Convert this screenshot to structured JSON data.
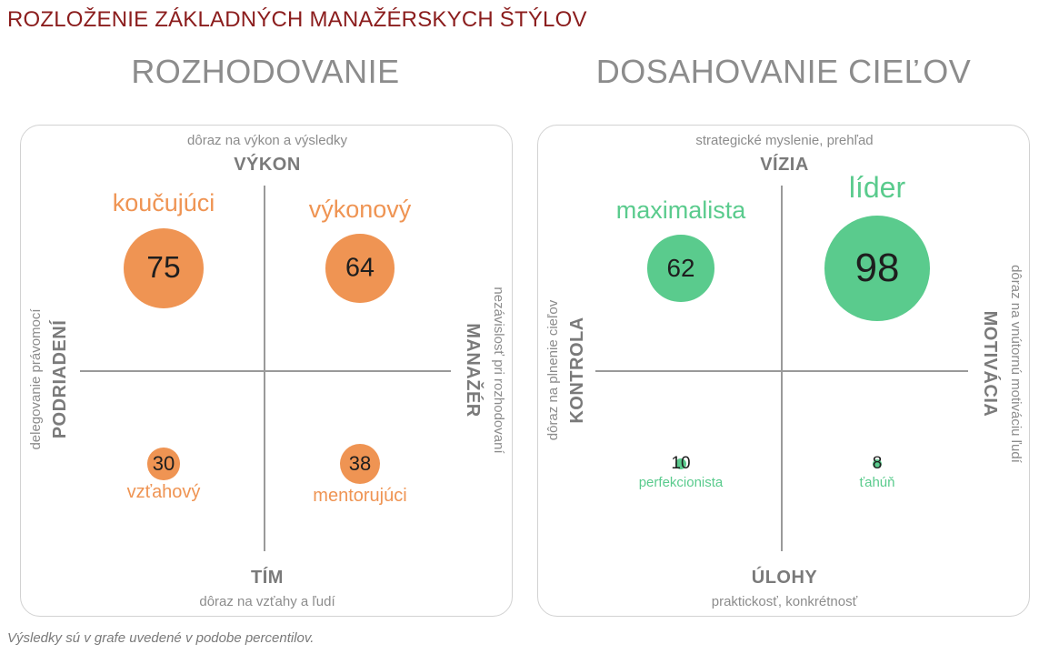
{
  "page_title": "ROZLOŽENIE ZÁKLADNÝCH MANAŽÉRSKYCH ŠTÝLOV",
  "footnote": "Výsledky sú v grafe uvedené v podobe percentilov.",
  "colors": {
    "orange": "#ef9453",
    "green": "#5acb8d",
    "title": "#8b1d1d"
  },
  "chart_data": [
    {
      "type": "scatter",
      "title": "ROZHODOVANIE",
      "axes": {
        "top": {
          "label": "VÝKON",
          "desc": "dôraz na výkon a výsledky"
        },
        "bottom": {
          "label": "TÍM",
          "desc": "dôraz na vzťahy a ľudí"
        },
        "left": {
          "label": "PODRIADENÍ",
          "desc": "delegovanie právomocí"
        },
        "right": {
          "label": "MANAŽÉR",
          "desc": "nezávislosť pri rozhodovaní"
        }
      },
      "color": "#ef9453",
      "points": [
        {
          "quadrant": "top-left",
          "name": "koučujúci",
          "value": 75
        },
        {
          "quadrant": "top-right",
          "name": "výkonový",
          "value": 64
        },
        {
          "quadrant": "bottom-left",
          "name": "vzťahový",
          "value": 30
        },
        {
          "quadrant": "bottom-right",
          "name": "mentorujúci",
          "value": 38
        }
      ]
    },
    {
      "type": "scatter",
      "title": "DOSAHOVANIE CIEĽOV",
      "axes": {
        "top": {
          "label": "VÍZIA",
          "desc": "strategické myslenie, prehľad"
        },
        "bottom": {
          "label": "ÚLOHY",
          "desc": "praktickosť, konkrétnosť"
        },
        "left": {
          "label": "KONTROLA",
          "desc": "dôraz na plnenie cieľov"
        },
        "right": {
          "label": "MOTIVÁCIA",
          "desc": "dôraz na vnútornú motiváciu ľudí"
        }
      },
      "color": "#5acb8d",
      "points": [
        {
          "quadrant": "top-left",
          "name": "maximalista",
          "value": 62
        },
        {
          "quadrant": "top-right",
          "name": "líder",
          "value": 98
        },
        {
          "quadrant": "bottom-left",
          "name": "perfekcionista",
          "value": 10
        },
        {
          "quadrant": "bottom-right",
          "name": "ťahúň",
          "value": 8
        }
      ]
    }
  ]
}
